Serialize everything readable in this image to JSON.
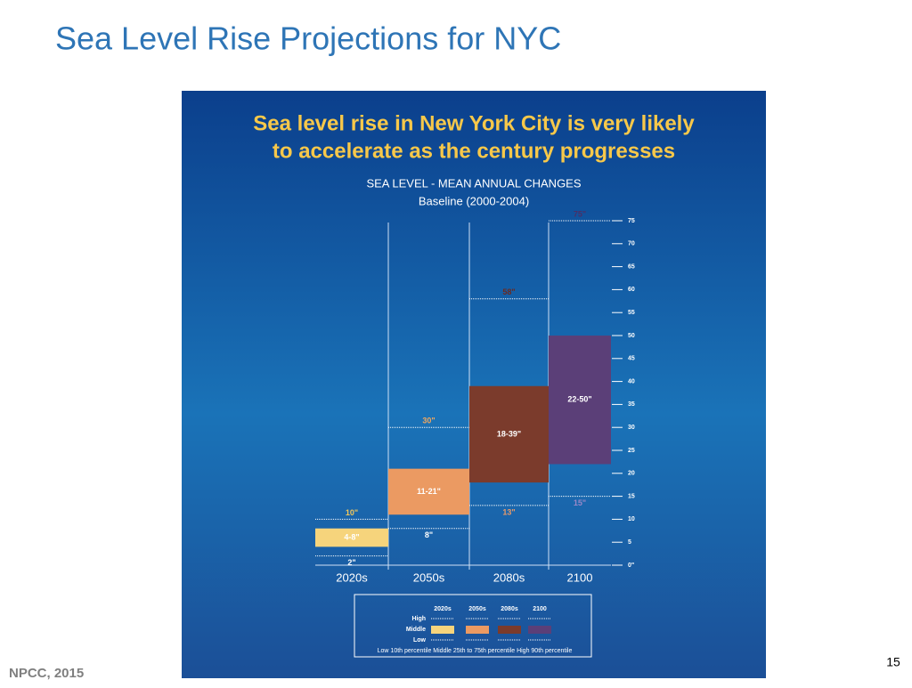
{
  "slide": {
    "title": "Sea Level Rise Projections for NYC",
    "source": "NPCC, 2015",
    "page_number": "15"
  },
  "chart_data": {
    "type": "range_bar",
    "title_lines": [
      "Sea level rise in New York City is very likely",
      "to accelerate as the century progresses"
    ],
    "subtitle": "SEA LEVEL - MEAN ANNUAL CHANGES",
    "baseline": "Baseline (2000-2004)",
    "categories": [
      "2020s",
      "2050s",
      "2080s",
      "2100"
    ],
    "series": [
      {
        "name": "Middle",
        "low": [
          4,
          11,
          18,
          22
        ],
        "high": [
          8,
          21,
          39,
          50
        ],
        "value_labels": [
          "4-8\"",
          "11-21\"",
          "18-39\"",
          "22-50\""
        ],
        "colors": [
          "#f6d47c",
          "#eb9a62",
          "#7b3b2c",
          "#5b3f78"
        ]
      },
      {
        "name": "High",
        "values": [
          10,
          30,
          58,
          75
        ],
        "value_labels": [
          "10\"",
          "30\"",
          "58\"",
          "75\""
        ],
        "colors": [
          "#f3c85a",
          "#f0a860",
          "#6a2a22",
          "#4a2f66"
        ]
      },
      {
        "name": "Low",
        "values": [
          2,
          8,
          13,
          15
        ],
        "value_labels": [
          "2\"",
          "8\"",
          "13\"",
          "15\""
        ],
        "colors": [
          "#ffffff",
          "#ffffff",
          "#e89a6a",
          "#9a88c8"
        ]
      }
    ],
    "ylim": [
      0,
      75
    ],
    "yticks": [
      {
        "value": 0,
        "label": "0\""
      },
      5,
      10,
      15,
      20,
      25,
      30,
      35,
      40,
      45,
      50,
      55,
      60,
      65,
      70,
      75
    ],
    "legend_note": "Low 10th percentile  Middle 25th to 75th percentile  High 90th percentile"
  }
}
